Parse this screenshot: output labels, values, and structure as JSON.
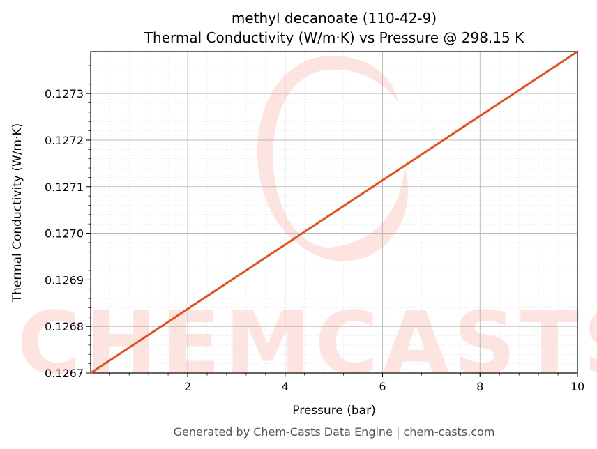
{
  "chart_data": {
    "type": "line",
    "title_line1": "methyl decanoate (110-42-9)",
    "title_line2": "Thermal Conductivity (W/m·K) vs Pressure @ 298.15 K",
    "xlabel": "Pressure (bar)",
    "ylabel": "Thermal Conductivity (W/m·K)",
    "xlim": [
      0.01,
      10
    ],
    "ylim": [
      0.1267,
      0.12739
    ],
    "x_ticks": [
      2,
      4,
      6,
      8,
      10
    ],
    "x_tick_labels": [
      "2",
      "4",
      "6",
      "8",
      "10"
    ],
    "y_ticks": [
      0.1267,
      0.1268,
      0.1269,
      0.127,
      0.1271,
      0.1272,
      0.1273
    ],
    "y_tick_labels": [
      "0.1267",
      "0.1268",
      "0.1269",
      "0.1270",
      "0.1271",
      "0.1272",
      "0.1273"
    ],
    "grid": true,
    "series": [
      {
        "color": "#d9541e",
        "x": [
          0.01,
          10
        ],
        "y": [
          0.1267,
          0.12739
        ]
      }
    ],
    "watermark": "CHEMCASTS",
    "watermark_color": "#fde4e1"
  },
  "footer": "Generated by Chem-Casts Data Engine | chem-casts.com"
}
